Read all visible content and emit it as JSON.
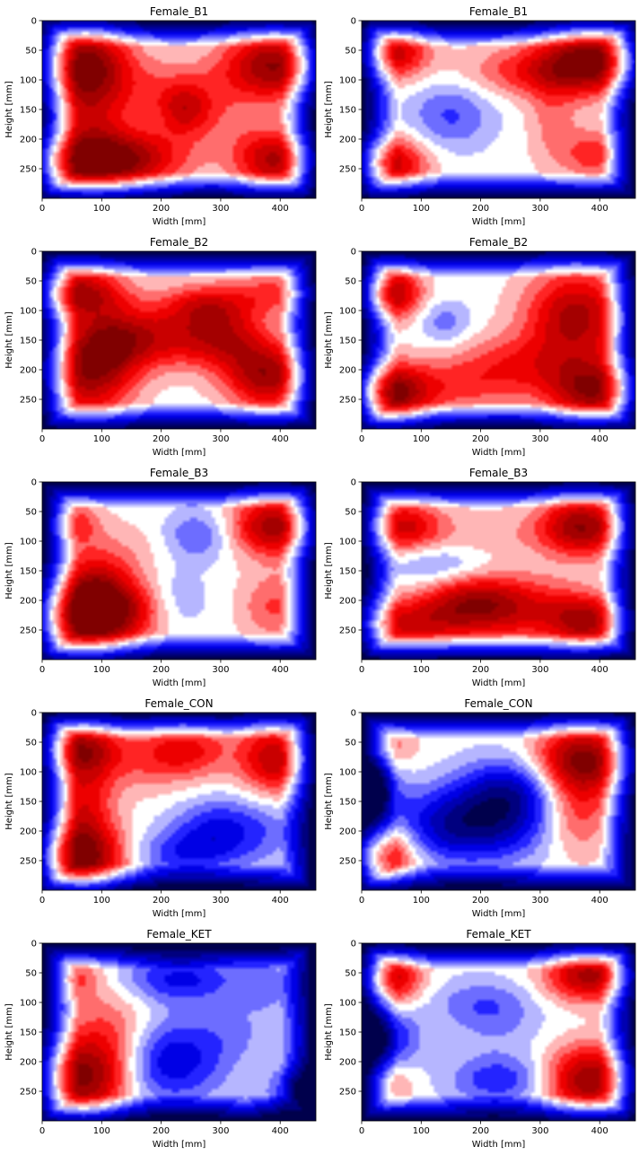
{
  "chart_data": [
    {
      "type": "heatmap",
      "title": "Female_B1",
      "xlabel": "Width [mm]",
      "ylabel": "Height [mm]",
      "xlim": [
        0,
        460
      ],
      "ylim": [
        300,
        0
      ],
      "xticks": [
        0,
        100,
        200,
        300,
        400
      ],
      "yticks": [
        0,
        50,
        100,
        150,
        200,
        250
      ],
      "colormap": "seismic",
      "blobs": [
        [
          70,
          70,
          55,
          45,
          1.0
        ],
        [
          80,
          150,
          45,
          60,
          0.6
        ],
        [
          70,
          240,
          70,
          35,
          1.1
        ],
        [
          170,
          230,
          60,
          35,
          0.6
        ],
        [
          240,
          150,
          30,
          30,
          0.55
        ],
        [
          200,
          120,
          60,
          40,
          0.35
        ],
        [
          390,
          75,
          60,
          40,
          1.1
        ],
        [
          390,
          235,
          45,
          35,
          0.95
        ],
        [
          300,
          160,
          55,
          55,
          0.25
        ]
      ]
    },
    {
      "type": "heatmap",
      "title": "Female_B1",
      "xlabel": "Width [mm]",
      "ylabel": "Height [mm]",
      "xlim": [
        0,
        460
      ],
      "ylim": [
        300,
        0
      ],
      "xticks": [
        0,
        100,
        200,
        300,
        400
      ],
      "yticks": [
        0,
        50,
        100,
        150,
        200,
        250
      ],
      "colormap": "seismic",
      "blobs": [
        [
          55,
          55,
          40,
          30,
          0.85
        ],
        [
          45,
          240,
          45,
          30,
          0.9
        ],
        [
          390,
          65,
          60,
          40,
          1.1
        ],
        [
          290,
          85,
          80,
          30,
          0.55
        ],
        [
          390,
          225,
          35,
          30,
          0.55
        ],
        [
          320,
          170,
          30,
          60,
          0.3
        ],
        [
          150,
          160,
          50,
          40,
          -0.45
        ]
      ]
    },
    {
      "type": "heatmap",
      "title": "Female_B2",
      "xlabel": "Width [mm]",
      "ylabel": "Height [mm]",
      "xlim": [
        0,
        460
      ],
      "ylim": [
        300,
        0
      ],
      "xticks": [
        0,
        100,
        200,
        300,
        400
      ],
      "yticks": [
        0,
        50,
        100,
        150,
        200,
        250
      ],
      "colormap": "seismic",
      "blobs": [
        [
          60,
          70,
          55,
          30,
          1.0
        ],
        [
          80,
          210,
          50,
          50,
          0.95
        ],
        [
          120,
          150,
          50,
          40,
          0.8
        ],
        [
          240,
          145,
          70,
          35,
          0.75
        ],
        [
          270,
          90,
          50,
          25,
          0.6
        ],
        [
          380,
          210,
          45,
          40,
          1.0
        ],
        [
          390,
          70,
          45,
          25,
          0.45
        ],
        [
          320,
          150,
          40,
          50,
          0.45
        ]
      ]
    },
    {
      "type": "heatmap",
      "title": "Female_B2",
      "xlabel": "Width [mm]",
      "ylabel": "Height [mm]",
      "xlim": [
        0,
        460
      ],
      "ylim": [
        300,
        0
      ],
      "xticks": [
        0,
        100,
        200,
        300,
        400
      ],
      "yticks": [
        0,
        50,
        100,
        150,
        200,
        250
      ],
      "colormap": "seismic",
      "blobs": [
        [
          50,
          70,
          35,
          30,
          1.0
        ],
        [
          45,
          240,
          45,
          35,
          1.1
        ],
        [
          360,
          110,
          60,
          55,
          1.0
        ],
        [
          390,
          235,
          55,
          35,
          1.05
        ],
        [
          260,
          190,
          80,
          35,
          0.5
        ],
        [
          150,
          230,
          80,
          30,
          0.4
        ],
        [
          140,
          120,
          30,
          25,
          -0.35
        ]
      ]
    },
    {
      "type": "heatmap",
      "title": "Female_B3",
      "xlabel": "Width [mm]",
      "ylabel": "Height [mm]",
      "xlim": [
        0,
        460
      ],
      "ylim": [
        300,
        0
      ],
      "xticks": [
        0,
        100,
        200,
        300,
        400
      ],
      "yticks": [
        0,
        50,
        100,
        150,
        200,
        250
      ],
      "colormap": "seismic",
      "blobs": [
        [
          65,
          230,
          60,
          45,
          1.15
        ],
        [
          140,
          215,
          55,
          35,
          0.6
        ],
        [
          90,
          170,
          40,
          45,
          0.55
        ],
        [
          55,
          70,
          30,
          25,
          0.5
        ],
        [
          390,
          75,
          50,
          35,
          1.05
        ],
        [
          390,
          210,
          40,
          40,
          0.45
        ],
        [
          150,
          120,
          60,
          40,
          0.15
        ],
        [
          260,
          90,
          40,
          30,
          -0.45
        ],
        [
          220,
          200,
          40,
          40,
          -0.3
        ]
      ]
    },
    {
      "type": "heatmap",
      "title": "Female_B3",
      "xlabel": "Width [mm]",
      "ylabel": "Height [mm]",
      "xlim": [
        0,
        460
      ],
      "ylim": [
        300,
        0
      ],
      "xticks": [
        0,
        100,
        200,
        300,
        400
      ],
      "yticks": [
        0,
        50,
        100,
        150,
        200,
        250
      ],
      "colormap": "seismic",
      "blobs": [
        [
          70,
          75,
          45,
          30,
          0.8
        ],
        [
          190,
          205,
          60,
          35,
          1.0
        ],
        [
          70,
          240,
          70,
          30,
          0.75
        ],
        [
          300,
          220,
          60,
          40,
          0.55
        ],
        [
          380,
          235,
          40,
          30,
          0.85
        ],
        [
          370,
          75,
          50,
          35,
          1.1
        ],
        [
          210,
          90,
          80,
          30,
          0.2
        ],
        [
          130,
          140,
          60,
          25,
          -0.35
        ]
      ]
    },
    {
      "type": "heatmap",
      "title": "Female_CON",
      "xlabel": "Width [mm]",
      "ylabel": "Height [mm]",
      "xlim": [
        0,
        460
      ],
      "ylim": [
        300,
        0
      ],
      "xticks": [
        0,
        100,
        200,
        300,
        400
      ],
      "yticks": [
        0,
        50,
        100,
        150,
        200,
        250
      ],
      "colormap": "seismic",
      "blobs": [
        [
          65,
          245,
          55,
          40,
          1.15
        ],
        [
          70,
          150,
          35,
          60,
          0.65
        ],
        [
          65,
          60,
          45,
          30,
          0.85
        ],
        [
          240,
          60,
          55,
          30,
          0.55
        ],
        [
          390,
          80,
          40,
          45,
          0.9
        ],
        [
          180,
          90,
          80,
          35,
          0.3
        ],
        [
          300,
          200,
          55,
          40,
          -0.65
        ],
        [
          220,
          240,
          60,
          30,
          -0.45
        ],
        [
          390,
          190,
          40,
          50,
          -0.2
        ]
      ]
    },
    {
      "type": "heatmap",
      "title": "Female_CON",
      "xlabel": "Width [mm]",
      "ylabel": "Height [mm]",
      "xlim": [
        0,
        460
      ],
      "ylim": [
        300,
        0
      ],
      "xticks": [
        0,
        100,
        200,
        300,
        400
      ],
      "yticks": [
        0,
        50,
        100,
        150,
        200,
        250
      ],
      "colormap": "seismic",
      "blobs": [
        [
          40,
          60,
          35,
          25,
          0.4
        ],
        [
          30,
          240,
          40,
          35,
          1.0
        ],
        [
          370,
          80,
          55,
          40,
          1.15
        ],
        [
          360,
          170,
          40,
          50,
          0.55
        ],
        [
          180,
          190,
          90,
          45,
          -1.0
        ],
        [
          250,
          130,
          60,
          40,
          -0.7
        ],
        [
          20,
          130,
          30,
          40,
          -0.7
        ]
      ]
    },
    {
      "type": "heatmap",
      "title": "Female_KET",
      "xlabel": "Width [mm]",
      "ylabel": "Height [mm]",
      "xlim": [
        0,
        460
      ],
      "ylim": [
        300,
        0
      ],
      "xticks": [
        0,
        100,
        200,
        300,
        400
      ],
      "yticks": [
        0,
        50,
        100,
        150,
        200,
        250
      ],
      "colormap": "seismic",
      "blobs": [
        [
          70,
          230,
          55,
          45,
          1.15
        ],
        [
          110,
          160,
          50,
          45,
          0.5
        ],
        [
          60,
          60,
          30,
          25,
          0.45
        ],
        [
          140,
          90,
          50,
          40,
          0.1
        ],
        [
          320,
          150,
          60,
          35,
          -0.2
        ],
        [
          380,
          70,
          40,
          35,
          -0.3
        ],
        [
          210,
          200,
          70,
          50,
          -0.75
        ],
        [
          230,
          60,
          70,
          30,
          -0.65
        ],
        [
          420,
          250,
          30,
          30,
          -0.6
        ]
      ]
    },
    {
      "type": "heatmap",
      "title": "Female_KET",
      "xlabel": "Width [mm]",
      "ylabel": "Height [mm]",
      "xlim": [
        0,
        460
      ],
      "ylim": [
        300,
        0
      ],
      "xticks": [
        0,
        100,
        200,
        300,
        400
      ],
      "yticks": [
        0,
        50,
        100,
        150,
        200,
        250
      ],
      "colormap": "seismic",
      "blobs": [
        [
          50,
          60,
          35,
          30,
          0.85
        ],
        [
          380,
          55,
          50,
          30,
          1.0
        ],
        [
          380,
          230,
          50,
          40,
          1.1
        ],
        [
          45,
          240,
          30,
          25,
          0.35
        ],
        [
          200,
          100,
          60,
          30,
          -0.35
        ],
        [
          230,
          140,
          55,
          35,
          -0.2
        ],
        [
          40,
          160,
          40,
          35,
          -0.7
        ],
        [
          230,
          230,
          60,
          30,
          -0.55
        ]
      ]
    }
  ]
}
